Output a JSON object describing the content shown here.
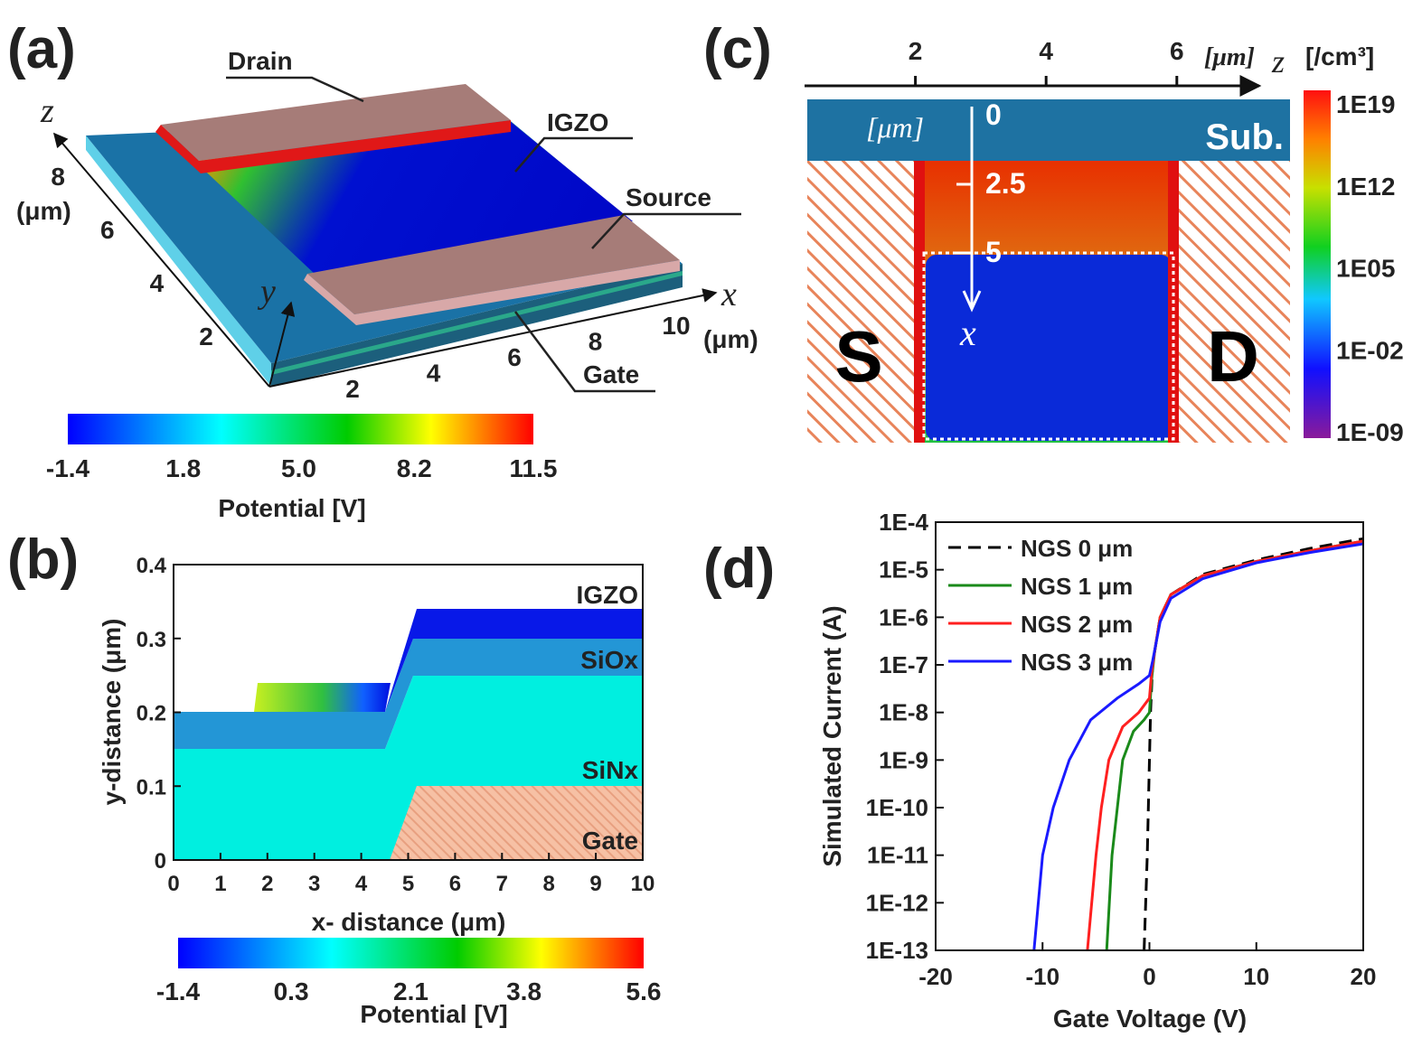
{
  "panel_a": {
    "label": "(a)",
    "drain": "Drain",
    "igzo": "IGZO",
    "source": "Source",
    "gate": "Gate",
    "z_axis": "z",
    "x_axis": "x",
    "y_axis": "y",
    "z_unit": "(μm)",
    "x_unit": "(μm)",
    "z_ticks": [
      2,
      4,
      6,
      8
    ],
    "x_ticks": [
      2,
      4,
      6,
      8,
      10
    ],
    "colorbar": {
      "label": "Potential [V]",
      "lim": [
        -1.4,
        11.5
      ],
      "ticks": [
        -1.4,
        1.8,
        {
          "value": 5,
          "label": "5.0"
        },
        8.2,
        11.5
      ]
    }
  },
  "panel_b": {
    "label": "(b)",
    "xlabel": "x- distance (μm)",
    "ylabel": "y-distance (μm)",
    "xlim": [
      0,
      10
    ],
    "ylim": [
      0,
      0.4
    ],
    "xticks": [
      0,
      1,
      2,
      3,
      4,
      5,
      6,
      7,
      8,
      9,
      10
    ],
    "yticks": [
      0,
      0.1,
      0.2,
      0.3,
      0.4
    ],
    "layers": [
      "IGZO",
      "SiOx",
      "SiNx",
      "Gate"
    ],
    "colorbar": {
      "label": "Potential [V]",
      "lim": [
        -1.4,
        5.6
      ],
      "ticks": [
        -1.4,
        0.3,
        2.1,
        3.8,
        5.6
      ]
    }
  },
  "panel_c": {
    "label": "(c)",
    "z_axis": "z",
    "z_unit": "[μm]",
    "z_ticks": [
      2,
      4,
      6
    ],
    "depth_axis": "x",
    "depth_unit": "[μm]",
    "depth_ticks": [
      0,
      2.5,
      5
    ],
    "substrate": "Sub.",
    "source": "S",
    "drain": "D",
    "colorbar": {
      "label": "[/cm³]",
      "log": true,
      "lim": [
        1e-09,
        1e+19
      ],
      "ticks": [
        {
          "value": 1e+19,
          "label": "1E19"
        },
        {
          "value": 1000000000000.0,
          "label": "1E12"
        },
        {
          "value": 100000.0,
          "label": "1E05"
        },
        {
          "value": 0.01,
          "label": "1E-02"
        },
        {
          "value": 1e-09,
          "label": "1E-09"
        }
      ]
    }
  },
  "chart_data": {
    "type": "line",
    "label": "(d)",
    "xlabel": "Gate Voltage (V)",
    "ylabel": "Simulated Current (A)",
    "xlim": [
      -20,
      20
    ],
    "ylim": [
      1e-13,
      0.0001
    ],
    "log_y": true,
    "xticks": [
      -20,
      -10,
      0,
      10,
      20
    ],
    "yticks": [
      {
        "value": 0.0001,
        "label": "1E-4"
      },
      {
        "value": 1e-05,
        "label": "1E-5"
      },
      {
        "value": 1e-06,
        "label": "1E-6"
      },
      {
        "value": 1e-07,
        "label": "1E-7"
      },
      {
        "value": 1e-08,
        "label": "1E-8"
      },
      {
        "value": 1e-09,
        "label": "1E-9"
      },
      {
        "value": 1e-10,
        "label": "1E-10"
      },
      {
        "value": 1e-11,
        "label": "1E-11"
      },
      {
        "value": 1e-12,
        "label": "1E-12"
      },
      {
        "value": 1e-13,
        "label": "1E-13"
      }
    ],
    "legend": "upper left",
    "series": [
      {
        "name": "NGS 0 μm",
        "color": "#000000",
        "dash": true,
        "x": [
          -0.5,
          -0.2,
          0,
          0.1,
          0.3,
          1,
          2,
          5,
          10,
          15,
          20
        ],
        "values": [
          1e-13,
          1e-11,
          1e-09,
          1e-08,
          1e-07,
          1e-06,
          3e-06,
          8e-06,
          1.6e-05,
          2.8e-05,
          4.5e-05
        ]
      },
      {
        "name": "NGS 1 μm",
        "color": "#1a8a1a",
        "x": [
          -4,
          -3.5,
          -3,
          -2.5,
          -1.5,
          -0.5,
          0,
          0.2,
          0.5,
          1,
          2,
          5,
          10,
          15,
          20
        ],
        "values": [
          1e-13,
          1e-11,
          1e-10,
          1e-09,
          4e-09,
          7e-09,
          1e-08,
          5e-08,
          2e-07,
          1e-06,
          3e-06,
          7.5e-06,
          1.5e-05,
          2.5e-05,
          4e-05
        ]
      },
      {
        "name": "NGS 2 μm",
        "color": "#ff2020",
        "x": [
          -5.8,
          -5,
          -4.5,
          -3.8,
          -2.5,
          -1,
          0,
          0.2,
          0.5,
          1,
          2,
          5,
          10,
          15,
          20
        ],
        "values": [
          1e-13,
          1e-11,
          1e-10,
          1e-09,
          5e-09,
          1e-08,
          2e-08,
          7e-08,
          2e-07,
          1e-06,
          3e-06,
          7.5e-06,
          1.5e-05,
          2.5e-05,
          4e-05
        ]
      },
      {
        "name": "NGS 3 μm",
        "color": "#1a1aff",
        "x": [
          -10.8,
          -10,
          -9,
          -7.5,
          -5.5,
          -3,
          -1,
          0,
          0.3,
          1,
          2,
          5,
          10,
          15,
          20
        ],
        "values": [
          1e-13,
          1e-11,
          1e-10,
          1e-09,
          7e-09,
          2e-08,
          4e-08,
          6e-08,
          1.2e-07,
          8e-07,
          2.5e-06,
          6.5e-06,
          1.4e-05,
          2.3e-05,
          3.5e-05
        ]
      }
    ]
  }
}
